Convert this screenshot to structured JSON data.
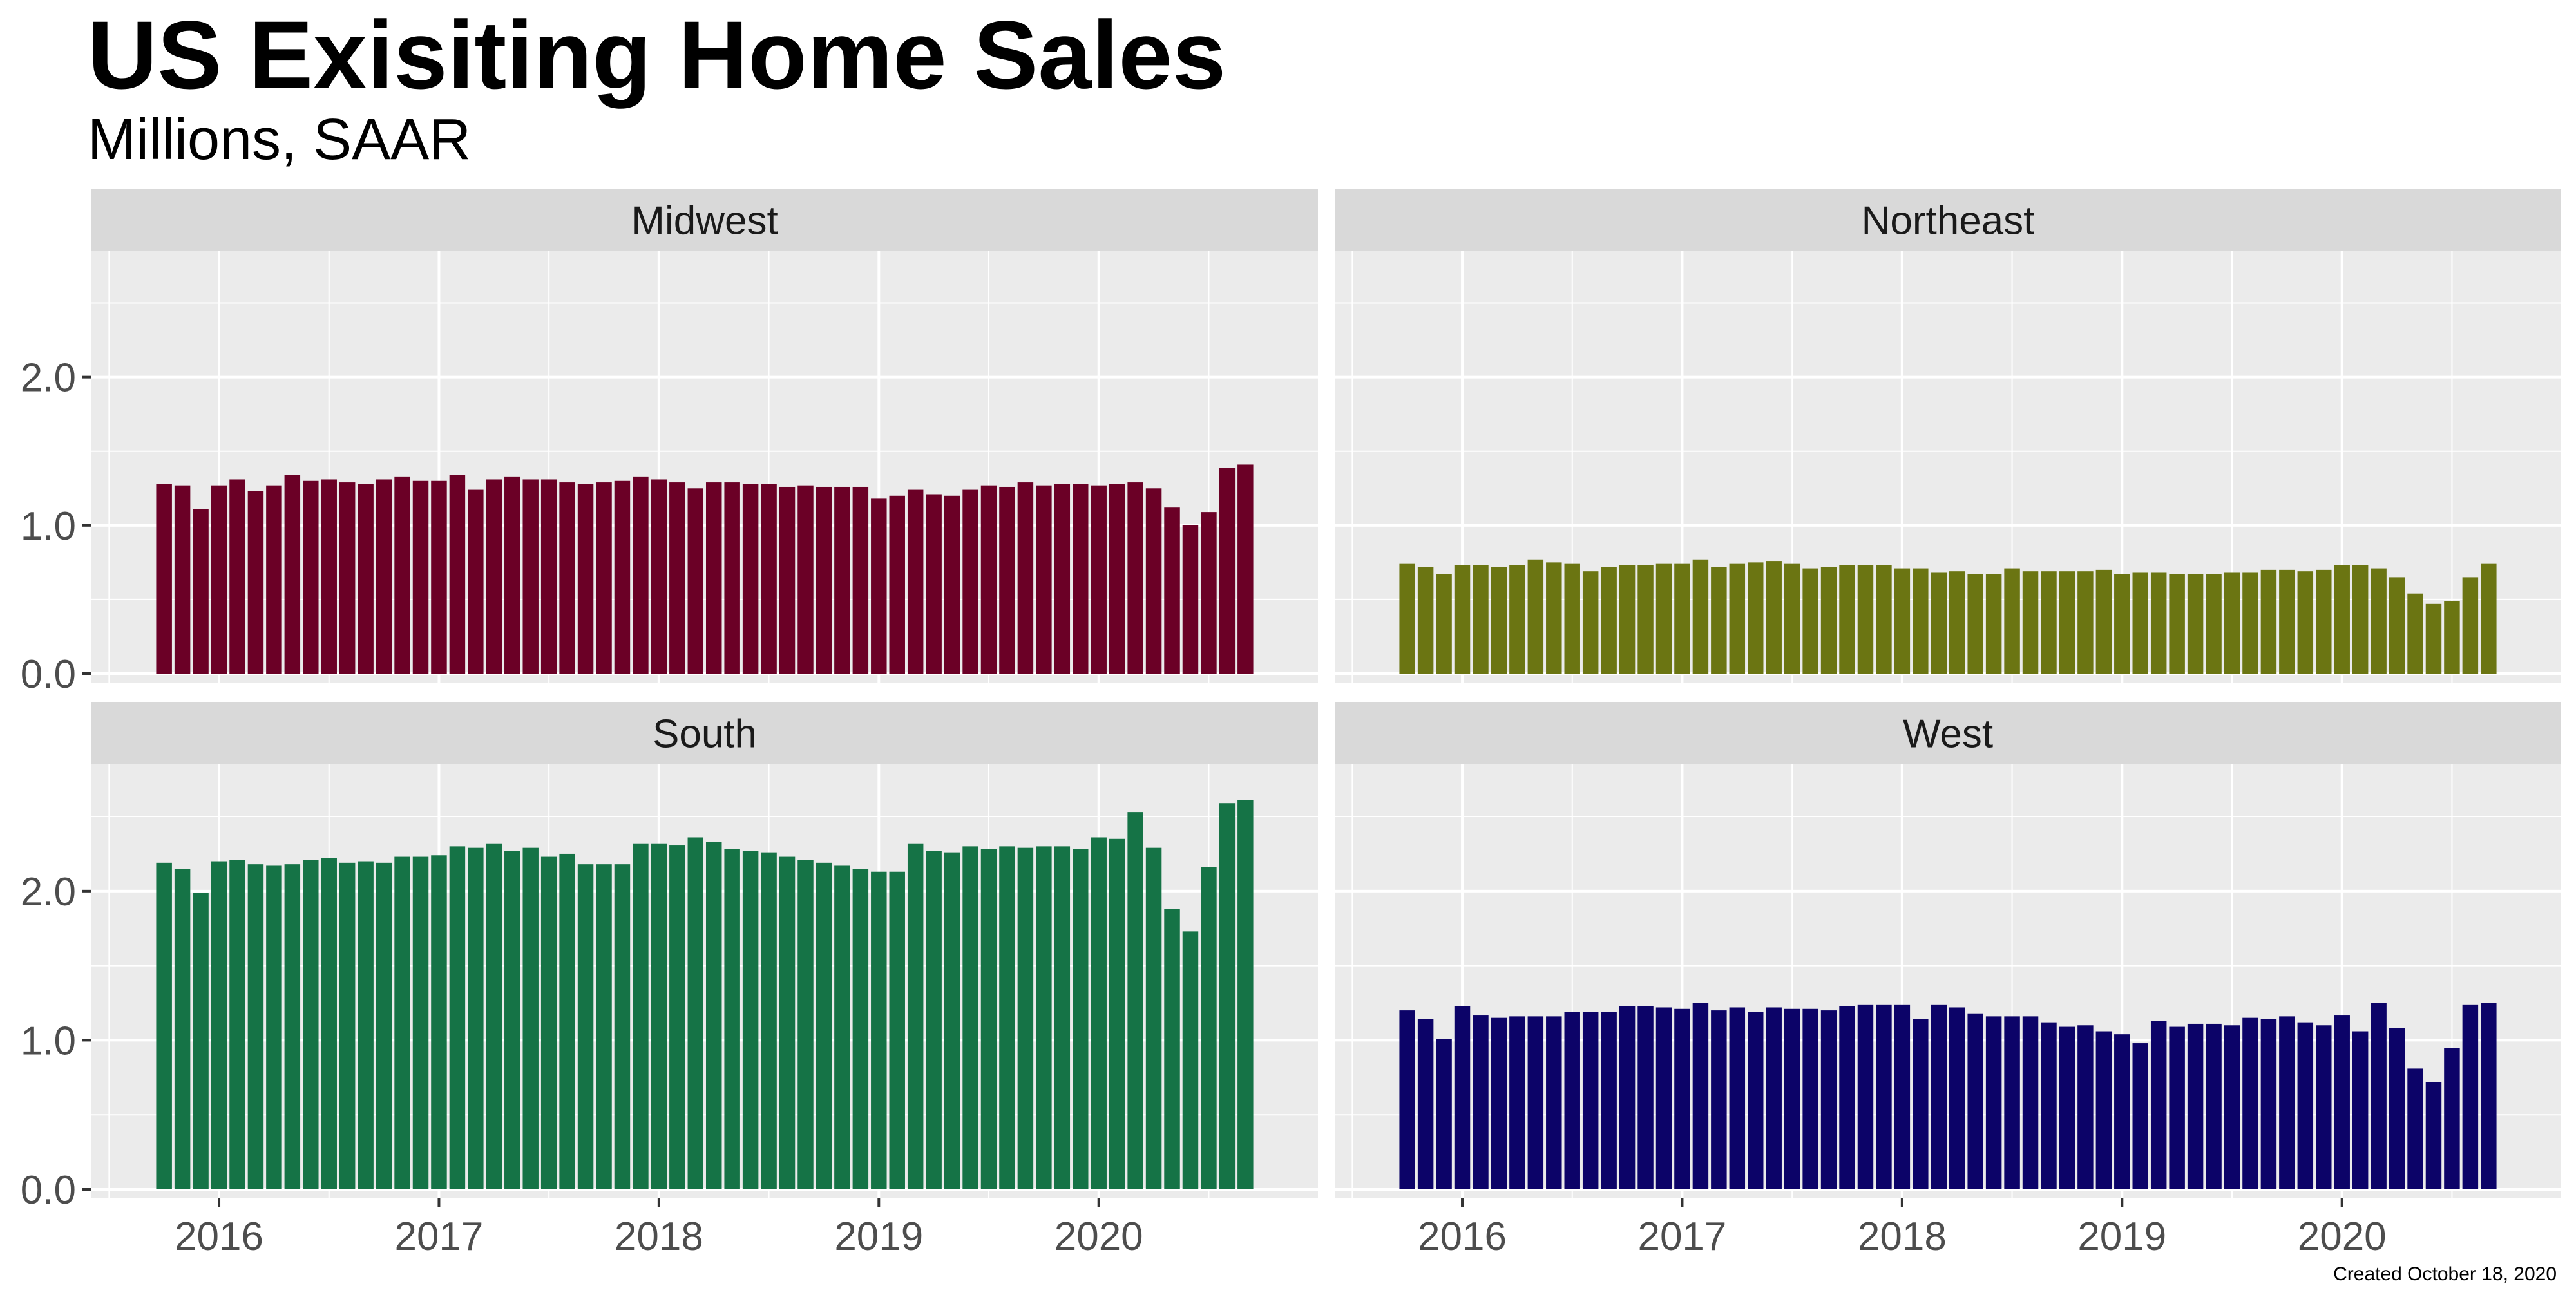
{
  "chart_data": {
    "type": "bar",
    "title": "US Exisiting Home Sales",
    "subtitle": "Millions, SAAR",
    "caption": "Created October 18, 2020",
    "start": "2015-10",
    "x_ticks": [
      "2016",
      "2017",
      "2018",
      "2019",
      "2020"
    ],
    "y_ticks_top": [
      "0.0",
      "1.0",
      "2.0"
    ],
    "y_ticks_bottom": [
      "0.0",
      "1.0",
      "2.0"
    ],
    "ylim": [
      0,
      2.85
    ],
    "grid": true,
    "panels": [
      {
        "name": "Midwest",
        "color": "#6b0026",
        "values": [
          1.28,
          1.27,
          1.11,
          1.27,
          1.31,
          1.23,
          1.27,
          1.34,
          1.3,
          1.31,
          1.29,
          1.28,
          1.31,
          1.33,
          1.3,
          1.3,
          1.34,
          1.24,
          1.31,
          1.33,
          1.31,
          1.31,
          1.29,
          1.28,
          1.29,
          1.3,
          1.33,
          1.31,
          1.29,
          1.25,
          1.29,
          1.29,
          1.28,
          1.28,
          1.26,
          1.27,
          1.26,
          1.26,
          1.26,
          1.18,
          1.2,
          1.24,
          1.21,
          1.2,
          1.24,
          1.27,
          1.26,
          1.29,
          1.27,
          1.28,
          1.28,
          1.27,
          1.28,
          1.29,
          1.25,
          1.12,
          1.0,
          1.09,
          1.39,
          1.41
        ]
      },
      {
        "name": "Northeast",
        "color": "#6b7512",
        "values": [
          0.74,
          0.72,
          0.67,
          0.73,
          0.73,
          0.72,
          0.73,
          0.77,
          0.75,
          0.74,
          0.69,
          0.72,
          0.73,
          0.73,
          0.74,
          0.74,
          0.77,
          0.72,
          0.74,
          0.75,
          0.76,
          0.74,
          0.71,
          0.72,
          0.73,
          0.73,
          0.73,
          0.71,
          0.71,
          0.68,
          0.69,
          0.67,
          0.67,
          0.71,
          0.69,
          0.69,
          0.69,
          0.69,
          0.7,
          0.67,
          0.68,
          0.68,
          0.67,
          0.67,
          0.67,
          0.68,
          0.68,
          0.7,
          0.7,
          0.69,
          0.7,
          0.73,
          0.73,
          0.71,
          0.65,
          0.54,
          0.47,
          0.49,
          0.65,
          0.74
        ]
      },
      {
        "name": "South",
        "color": "#157346",
        "values": [
          2.19,
          2.15,
          1.99,
          2.2,
          2.21,
          2.18,
          2.17,
          2.18,
          2.21,
          2.22,
          2.19,
          2.2,
          2.19,
          2.23,
          2.23,
          2.24,
          2.3,
          2.29,
          2.32,
          2.27,
          2.29,
          2.23,
          2.25,
          2.18,
          2.18,
          2.18,
          2.32,
          2.32,
          2.31,
          2.36,
          2.33,
          2.28,
          2.27,
          2.26,
          2.23,
          2.21,
          2.19,
          2.17,
          2.15,
          2.13,
          2.13,
          2.32,
          2.27,
          2.26,
          2.3,
          2.28,
          2.3,
          2.29,
          2.3,
          2.3,
          2.28,
          2.36,
          2.35,
          2.53,
          2.29,
          1.88,
          1.73,
          2.16,
          2.59,
          2.61
        ]
      },
      {
        "name": "West",
        "color": "#0c0368",
        "values": [
          1.2,
          1.14,
          1.01,
          1.23,
          1.17,
          1.15,
          1.16,
          1.16,
          1.16,
          1.19,
          1.19,
          1.19,
          1.23,
          1.23,
          1.22,
          1.21,
          1.25,
          1.2,
          1.22,
          1.19,
          1.22,
          1.21,
          1.21,
          1.2,
          1.23,
          1.24,
          1.24,
          1.24,
          1.14,
          1.24,
          1.22,
          1.18,
          1.16,
          1.16,
          1.16,
          1.12,
          1.09,
          1.1,
          1.06,
          1.04,
          0.98,
          1.13,
          1.09,
          1.11,
          1.11,
          1.1,
          1.15,
          1.14,
          1.16,
          1.12,
          1.1,
          1.17,
          1.06,
          1.25,
          1.08,
          0.81,
          0.72,
          0.95,
          1.24,
          1.25
        ]
      }
    ]
  }
}
